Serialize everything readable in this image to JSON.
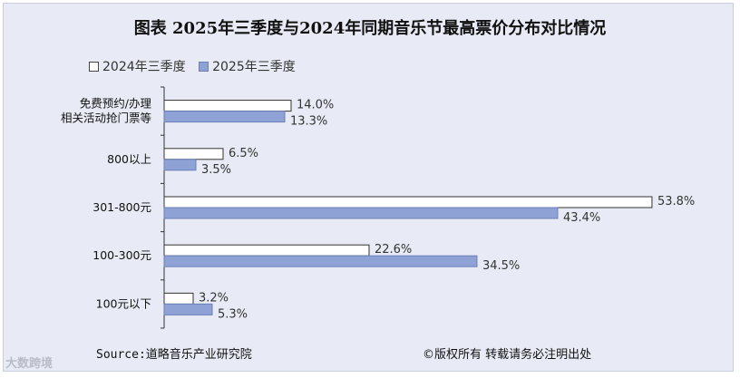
{
  "chart_data": {
    "type": "bar",
    "orientation": "horizontal",
    "title": "图表  2025年三季度与2024年同期音乐节最高票价分布对比情况",
    "categories": [
      [
        "免费预约/办理",
        "相关活动抢门票等"
      ],
      [
        "800以上"
      ],
      [
        "301-800元"
      ],
      [
        "100-300元"
      ],
      [
        "100元以下"
      ]
    ],
    "series": [
      {
        "name": "2024年三季度",
        "color": "#ffffff",
        "values": [
          14.0,
          6.5,
          53.8,
          22.6,
          3.2
        ],
        "labels": [
          "14.0%",
          "6.5%",
          "53.8%",
          "22.6%",
          "3.2%"
        ]
      },
      {
        "name": "2025年三季度",
        "color": "#8fa2d6",
        "values": [
          13.3,
          3.5,
          43.4,
          34.5,
          5.3
        ],
        "labels": [
          "13.3%",
          "3.5%",
          "43.4%",
          "34.5%",
          "5.3%"
        ]
      }
    ],
    "xlim": [
      0,
      60
    ],
    "grid": false,
    "legend_position": "top-left"
  },
  "footer": {
    "source": "Source:道略音乐产业研究院",
    "copyright": "©版权所有  转载请务必注明出处"
  },
  "watermark": "大数跨境"
}
